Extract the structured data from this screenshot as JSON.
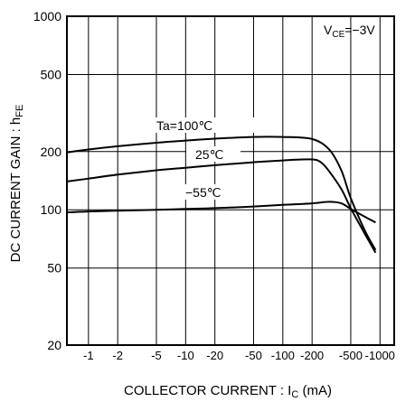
{
  "chart_data": {
    "type": "line",
    "title": "",
    "xlabel": "COLLECTOR  CURRENT :  I",
    "xlabel_sub": "C",
    "xlabel_unit": " (mA)",
    "ylabel": "DC  CURRENT  GAIN : h",
    "ylabel_sub": "FE",
    "annotation": {
      "text": "V",
      "sub": "CE",
      "rest": "=−3V"
    },
    "x_scale": "log",
    "y_scale": "log",
    "xlim": [
      -0.6,
      -1400
    ],
    "ylim": [
      20,
      1000
    ],
    "grid": true,
    "x_ticks": [
      {
        "value": -1,
        "label": "-1"
      },
      {
        "value": -2,
        "label": "-2"
      },
      {
        "value": -5,
        "label": "-5"
      },
      {
        "value": -10,
        "label": "-10"
      },
      {
        "value": -20,
        "label": "-20"
      },
      {
        "value": -50,
        "label": "-50"
      },
      {
        "value": -100,
        "label": "-100"
      },
      {
        "value": -200,
        "label": "-200"
      },
      {
        "value": -500,
        "label": "-500"
      },
      {
        "value": -1000,
        "label": "-1000"
      }
    ],
    "y_ticks": [
      {
        "value": 20,
        "label": "20"
      },
      {
        "value": 50,
        "label": "50"
      },
      {
        "value": 100,
        "label": "100"
      },
      {
        "value": 200,
        "label": "200"
      },
      {
        "value": 500,
        "label": "500"
      },
      {
        "value": 1000,
        "label": "1000"
      }
    ],
    "series": [
      {
        "name": "Ta=100℃",
        "x": [
          -0.6,
          -1,
          -2,
          -5,
          -10,
          -20,
          -50,
          -100,
          -200,
          -300,
          -400,
          -500,
          -700,
          -900
        ],
        "y": [
          198,
          205,
          213,
          222,
          228,
          233,
          238,
          238,
          232,
          205,
          160,
          115,
          78,
          62
        ]
      },
      {
        "name": "25℃",
        "x": [
          -0.6,
          -1,
          -2,
          -5,
          -10,
          -20,
          -50,
          -100,
          -200,
          -250,
          -300,
          -400,
          -500,
          -700,
          -900
        ],
        "y": [
          140,
          145,
          152,
          160,
          165,
          170,
          176,
          180,
          182,
          175,
          158,
          128,
          102,
          75,
          60
        ]
      },
      {
        "name": "−55℃",
        "x": [
          -0.6,
          -1,
          -2,
          -5,
          -10,
          -20,
          -50,
          -100,
          -200,
          -300,
          -400,
          -500,
          -700,
          -900
        ],
        "y": [
          97,
          98,
          99,
          100,
          101,
          102,
          104,
          106,
          108,
          110,
          108,
          101,
          92,
          86
        ]
      }
    ]
  }
}
